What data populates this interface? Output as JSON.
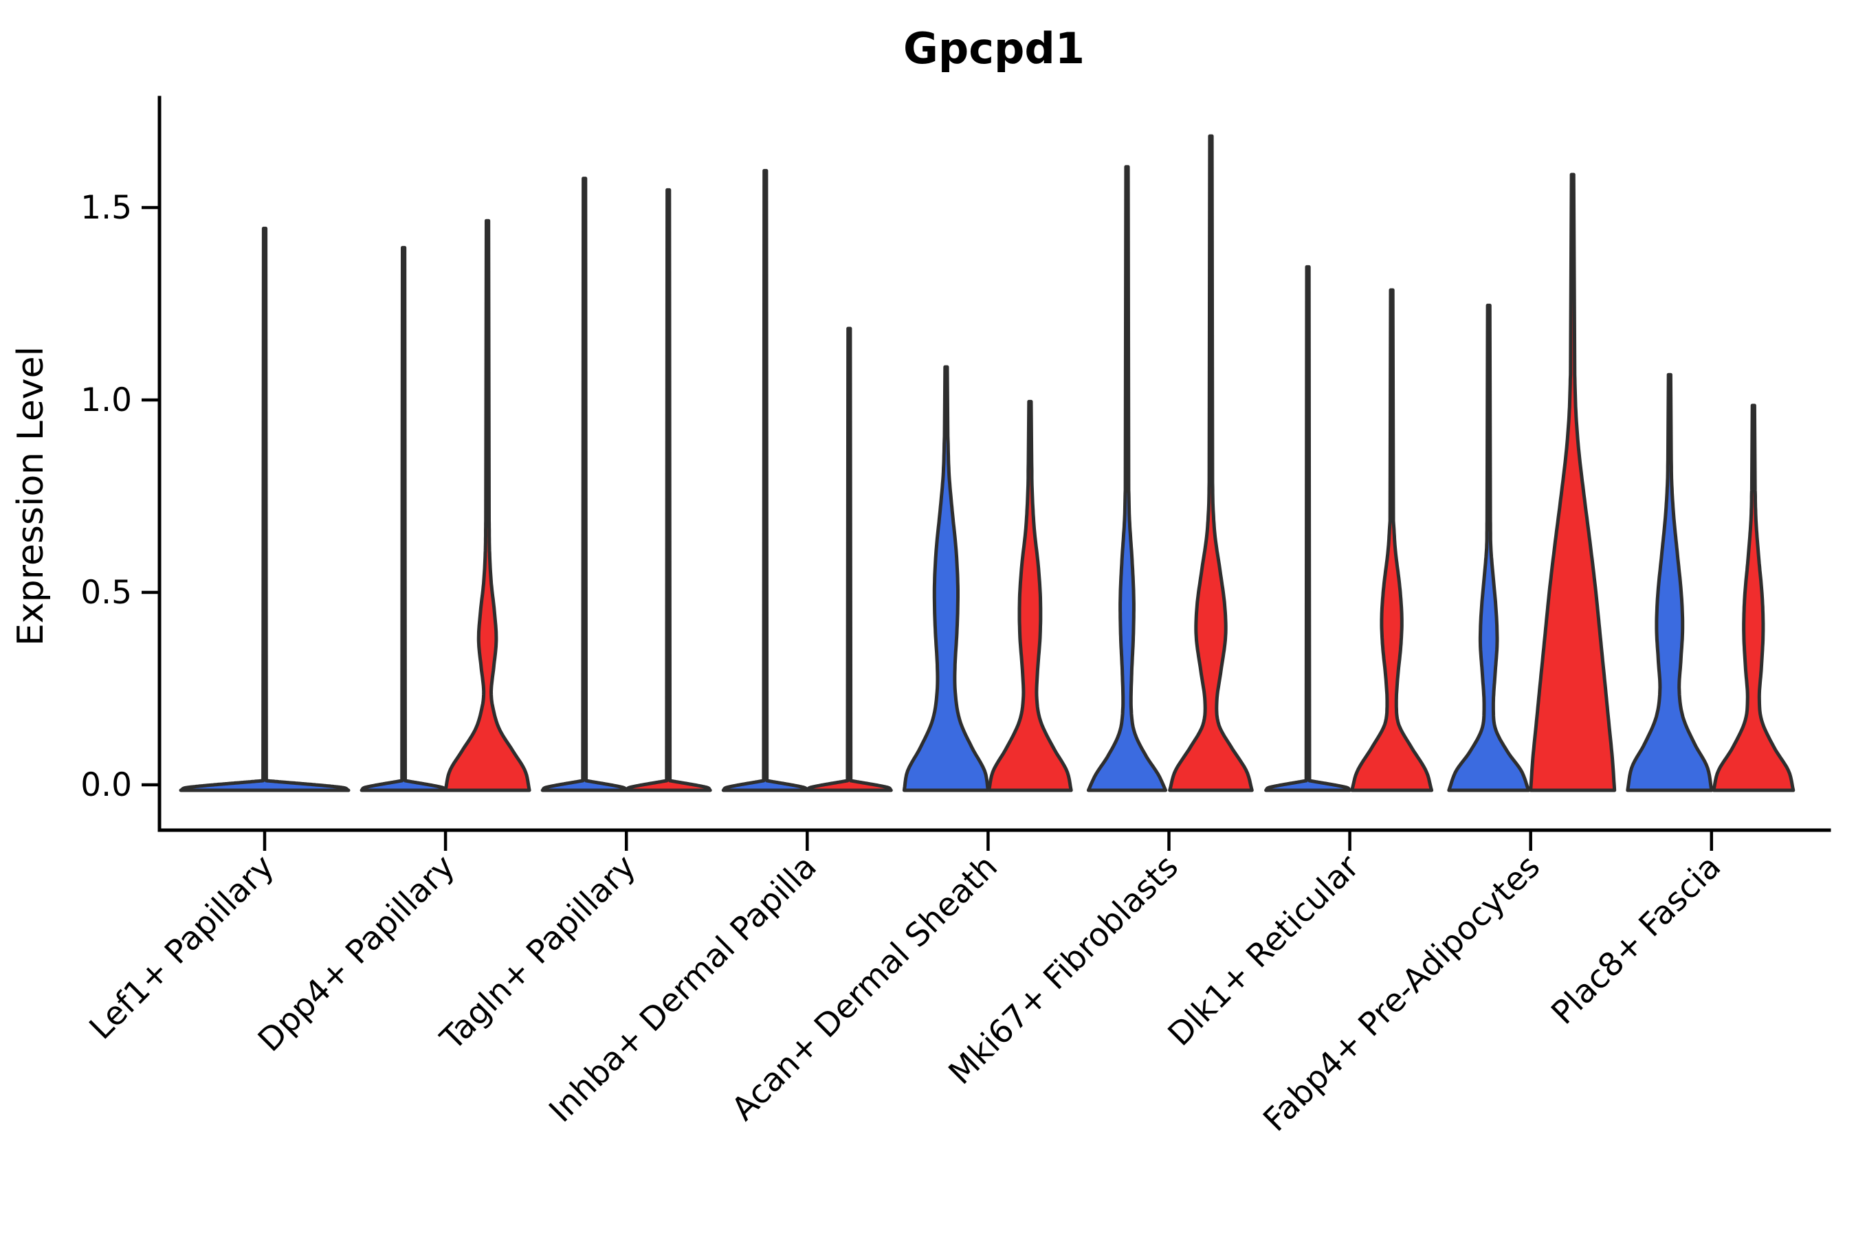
{
  "title": "Gpcpd1",
  "colors": {
    "blue": "#3b6be0",
    "red": "#f02d2d",
    "edge": "#2e2e2e",
    "background": "#ffffff",
    "text": "#000000"
  },
  "chart_data": {
    "type": "violin",
    "title": "Gpcpd1",
    "xlabel": "",
    "ylabel": "Expression Level",
    "legend_position": "none",
    "grid": false,
    "ylim": [
      -0.1,
      1.78
    ],
    "yticks": [
      {
        "value": 0.0,
        "label": "0.0"
      },
      {
        "value": 0.5,
        "label": "0.5"
      },
      {
        "value": 1.0,
        "label": "1.0"
      },
      {
        "value": 1.5,
        "label": "1.5"
      }
    ],
    "categories": [
      "Lef1+ Papillary",
      "Dpp4+ Papillary",
      "Tagln+ Papillary",
      "Inhba+ Dermal Papilla",
      "Acan+ Dermal Sheath",
      "Mki67+ Fibroblasts",
      "Dlk1+ Reticular",
      "Fabp4+ Pre-Adipocytes",
      "Plac8+ Fascia"
    ],
    "series": [
      {
        "name": "group-blue",
        "color": "#3b6be0"
      },
      {
        "name": "group-red",
        "color": "#f02d2d"
      }
    ],
    "violins": [
      {
        "category_index": 0,
        "category": "Lef1+ Papillary",
        "group": "combined",
        "color": "#3b6be0",
        "spike_top": 1.46,
        "width_scale": 2.0,
        "profile": [
          [
            0,
            1.0
          ],
          [
            0.008,
            0.9
          ],
          [
            0.025,
            0.02
          ]
        ]
      },
      {
        "category_index": 1,
        "category": "Dpp4+ Papillary",
        "group": "blue",
        "color": "#3b6be0",
        "spike_top": 1.41,
        "width_scale": 1.0,
        "profile": [
          [
            0,
            1.0
          ],
          [
            0.008,
            0.9
          ],
          [
            0.025,
            0.04
          ]
        ]
      },
      {
        "category_index": 1,
        "category": "Dpp4+ Papillary",
        "group": "red",
        "color": "#f02d2d",
        "spike_top": 1.48,
        "width_scale": 1.0,
        "profile": [
          [
            0,
            1.0
          ],
          [
            0.05,
            0.9
          ],
          [
            0.1,
            0.62
          ],
          [
            0.16,
            0.28
          ],
          [
            0.22,
            0.12
          ],
          [
            0.26,
            0.09
          ],
          [
            0.32,
            0.15
          ],
          [
            0.39,
            0.21
          ],
          [
            0.46,
            0.17
          ],
          [
            0.54,
            0.09
          ],
          [
            0.62,
            0.05
          ],
          [
            0.7,
            0.04
          ]
        ]
      },
      {
        "category_index": 2,
        "category": "Tagln+ Papillary",
        "group": "blue",
        "color": "#3b6be0",
        "spike_top": 1.59,
        "width_scale": 1.0,
        "profile": [
          [
            0,
            1.0
          ],
          [
            0.008,
            0.9
          ],
          [
            0.025,
            0.04
          ]
        ]
      },
      {
        "category_index": 2,
        "category": "Tagln+ Papillary",
        "group": "red",
        "color": "#f02d2d",
        "spike_top": 1.56,
        "width_scale": 1.0,
        "profile": [
          [
            0,
            1.0
          ],
          [
            0.008,
            0.9
          ],
          [
            0.025,
            0.04
          ]
        ]
      },
      {
        "category_index": 3,
        "category": "Inhba+ Dermal Papilla",
        "group": "blue",
        "color": "#3b6be0",
        "spike_top": 1.61,
        "width_scale": 1.0,
        "profile": [
          [
            0,
            1.0
          ],
          [
            0.008,
            0.9
          ],
          [
            0.025,
            0.04
          ]
        ]
      },
      {
        "category_index": 3,
        "category": "Inhba+ Dermal Papilla",
        "group": "red",
        "color": "#f02d2d",
        "spike_top": 1.2,
        "width_scale": 1.0,
        "profile": [
          [
            0,
            1.0
          ],
          [
            0.008,
            0.9
          ],
          [
            0.025,
            0.04
          ]
        ]
      },
      {
        "category_index": 4,
        "category": "Acan+ Dermal Sheath",
        "group": "blue",
        "color": "#3b6be0",
        "spike_top": 1.1,
        "width_scale": 1.0,
        "profile": [
          [
            0,
            1.0
          ],
          [
            0.05,
            0.92
          ],
          [
            0.11,
            0.62
          ],
          [
            0.18,
            0.33
          ],
          [
            0.25,
            0.22
          ],
          [
            0.32,
            0.21
          ],
          [
            0.42,
            0.26
          ],
          [
            0.52,
            0.28
          ],
          [
            0.62,
            0.24
          ],
          [
            0.72,
            0.15
          ],
          [
            0.82,
            0.07
          ],
          [
            0.92,
            0.04
          ]
        ]
      },
      {
        "category_index": 4,
        "category": "Acan+ Dermal Sheath",
        "group": "red",
        "color": "#f02d2d",
        "spike_top": 1.01,
        "width_scale": 1.0,
        "profile": [
          [
            0,
            0.98
          ],
          [
            0.05,
            0.88
          ],
          [
            0.11,
            0.56
          ],
          [
            0.18,
            0.25
          ],
          [
            0.24,
            0.16
          ],
          [
            0.31,
            0.18
          ],
          [
            0.4,
            0.24
          ],
          [
            0.49,
            0.25
          ],
          [
            0.58,
            0.2
          ],
          [
            0.68,
            0.1
          ],
          [
            0.78,
            0.05
          ],
          [
            0.85,
            0.04
          ]
        ]
      },
      {
        "category_index": 5,
        "category": "Mki67+ Fibroblasts",
        "group": "blue",
        "color": "#3b6be0",
        "spike_top": 1.62,
        "width_scale": 1.0,
        "profile": [
          [
            0,
            0.92
          ],
          [
            0.04,
            0.75
          ],
          [
            0.09,
            0.45
          ],
          [
            0.15,
            0.18
          ],
          [
            0.21,
            0.1
          ],
          [
            0.3,
            0.11
          ],
          [
            0.4,
            0.15
          ],
          [
            0.5,
            0.16
          ],
          [
            0.6,
            0.12
          ],
          [
            0.7,
            0.06
          ],
          [
            0.78,
            0.04
          ]
        ]
      },
      {
        "category_index": 5,
        "category": "Mki67+ Fibroblasts",
        "group": "red",
        "color": "#f02d2d",
        "spike_top": 1.7,
        "width_scale": 1.0,
        "profile": [
          [
            0,
            0.98
          ],
          [
            0.05,
            0.85
          ],
          [
            0.11,
            0.5
          ],
          [
            0.17,
            0.19
          ],
          [
            0.23,
            0.14
          ],
          [
            0.31,
            0.24
          ],
          [
            0.4,
            0.35
          ],
          [
            0.48,
            0.33
          ],
          [
            0.57,
            0.22
          ],
          [
            0.66,
            0.1
          ],
          [
            0.74,
            0.05
          ],
          [
            0.8,
            0.04
          ]
        ]
      },
      {
        "category_index": 6,
        "category": "Dlk1+ Reticular",
        "group": "blue",
        "color": "#3b6be0",
        "spike_top": 1.36,
        "width_scale": 1.0,
        "profile": [
          [
            0,
            1.0
          ],
          [
            0.008,
            0.9
          ],
          [
            0.025,
            0.04
          ]
        ]
      },
      {
        "category_index": 6,
        "category": "Dlk1+ Reticular",
        "group": "red",
        "color": "#f02d2d",
        "spike_top": 1.3,
        "width_scale": 1.0,
        "profile": [
          [
            0,
            0.95
          ],
          [
            0.05,
            0.82
          ],
          [
            0.11,
            0.48
          ],
          [
            0.17,
            0.17
          ],
          [
            0.22,
            0.11
          ],
          [
            0.29,
            0.14
          ],
          [
            0.38,
            0.22
          ],
          [
            0.45,
            0.24
          ],
          [
            0.53,
            0.19
          ],
          [
            0.62,
            0.09
          ],
          [
            0.7,
            0.04
          ]
        ]
      },
      {
        "category_index": 7,
        "category": "Fabp4+ Pre-Adipocytes",
        "group": "blue",
        "color": "#3b6be0",
        "spike_top": 1.26,
        "width_scale": 1.0,
        "profile": [
          [
            0,
            0.95
          ],
          [
            0.05,
            0.78
          ],
          [
            0.1,
            0.45
          ],
          [
            0.16,
            0.16
          ],
          [
            0.22,
            0.11
          ],
          [
            0.3,
            0.15
          ],
          [
            0.38,
            0.2
          ],
          [
            0.46,
            0.18
          ],
          [
            0.55,
            0.11
          ],
          [
            0.63,
            0.05
          ],
          [
            0.7,
            0.04
          ]
        ]
      },
      {
        "category_index": 7,
        "category": "Fabp4+ Pre-Adipocytes",
        "group": "red",
        "color": "#f02d2d",
        "spike_top": 1.6,
        "width_scale": 1.0,
        "profile": [
          [
            0,
            1.0
          ],
          [
            0.08,
            0.95
          ],
          [
            0.18,
            0.86
          ],
          [
            0.28,
            0.77
          ],
          [
            0.4,
            0.66
          ],
          [
            0.52,
            0.55
          ],
          [
            0.64,
            0.42
          ],
          [
            0.76,
            0.28
          ],
          [
            0.88,
            0.15
          ],
          [
            0.98,
            0.08
          ],
          [
            1.08,
            0.05
          ]
        ]
      },
      {
        "category_index": 8,
        "category": "Plac8+ Fascia",
        "group": "blue",
        "color": "#3b6be0",
        "spike_top": 1.08,
        "width_scale": 1.0,
        "profile": [
          [
            0,
            1.0
          ],
          [
            0.06,
            0.9
          ],
          [
            0.12,
            0.6
          ],
          [
            0.19,
            0.32
          ],
          [
            0.26,
            0.23
          ],
          [
            0.34,
            0.27
          ],
          [
            0.42,
            0.31
          ],
          [
            0.51,
            0.28
          ],
          [
            0.61,
            0.19
          ],
          [
            0.71,
            0.1
          ],
          [
            0.8,
            0.05
          ],
          [
            0.86,
            0.04
          ]
        ]
      },
      {
        "category_index": 8,
        "category": "Plac8+ Fascia",
        "group": "red",
        "color": "#f02d2d",
        "spike_top": 1.0,
        "width_scale": 1.0,
        "profile": [
          [
            0,
            0.95
          ],
          [
            0.05,
            0.84
          ],
          [
            0.11,
            0.5
          ],
          [
            0.18,
            0.2
          ],
          [
            0.24,
            0.14
          ],
          [
            0.32,
            0.19
          ],
          [
            0.41,
            0.23
          ],
          [
            0.5,
            0.21
          ],
          [
            0.6,
            0.13
          ],
          [
            0.7,
            0.06
          ],
          [
            0.78,
            0.04
          ]
        ]
      }
    ]
  }
}
